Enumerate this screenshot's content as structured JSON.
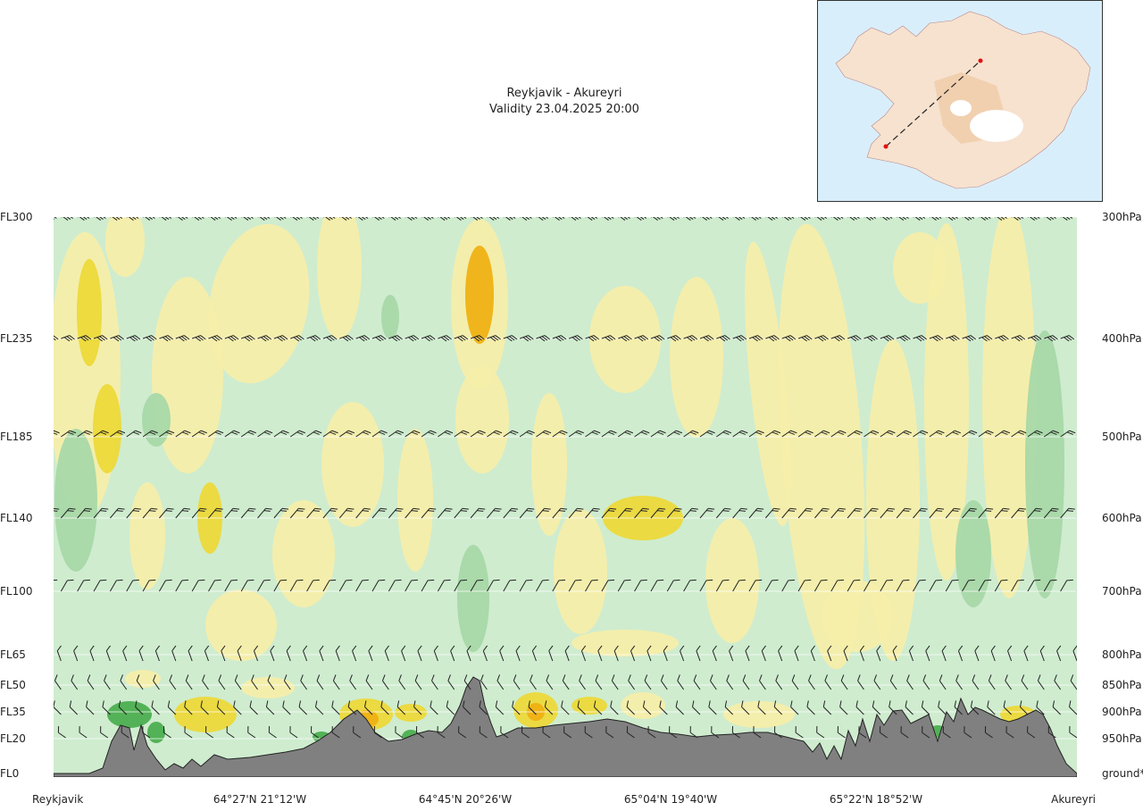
{
  "header": {
    "route": "Reykjavik - Akureyri",
    "validity": "Validity 23.04.2025 20:00"
  },
  "chart_data": {
    "type": "cross-section",
    "levels": [
      {
        "fl": "FL300",
        "pressure": "300hPa"
      },
      {
        "fl": "FL235",
        "pressure": "400hPa"
      },
      {
        "fl": "FL185",
        "pressure": "500hPa"
      },
      {
        "fl": "FL140",
        "pressure": "600hPa"
      },
      {
        "fl": "FL100",
        "pressure": "700hPa"
      },
      {
        "fl": "FL65",
        "pressure": "800hPa"
      },
      {
        "fl": "FL50",
        "pressure": "850hPa"
      },
      {
        "fl": "FL35",
        "pressure": "900hPa"
      },
      {
        "fl": "FL20",
        "pressure": "950hPa"
      },
      {
        "fl": "FL0",
        "pressure": "ground*"
      }
    ],
    "waypoints": [
      "Reykjavik",
      "64°27'N 21°12'W",
      "64°45'N 20°26'W",
      "65°04'N 19°40'W",
      "65°22'N 18°52'W",
      "Akureyri"
    ],
    "colors": {
      "pale_green": "#cfeccf",
      "mid_green": "#a8d8a8",
      "dark_green": "#4caf50",
      "pale_yellow": "#f6eeaa",
      "yellow": "#ecd93a",
      "orange": "#efb114",
      "terrain": "#808080",
      "inset_sea": "#d9eefb",
      "route_line": "#222222",
      "route_points": "#e01010"
    }
  }
}
